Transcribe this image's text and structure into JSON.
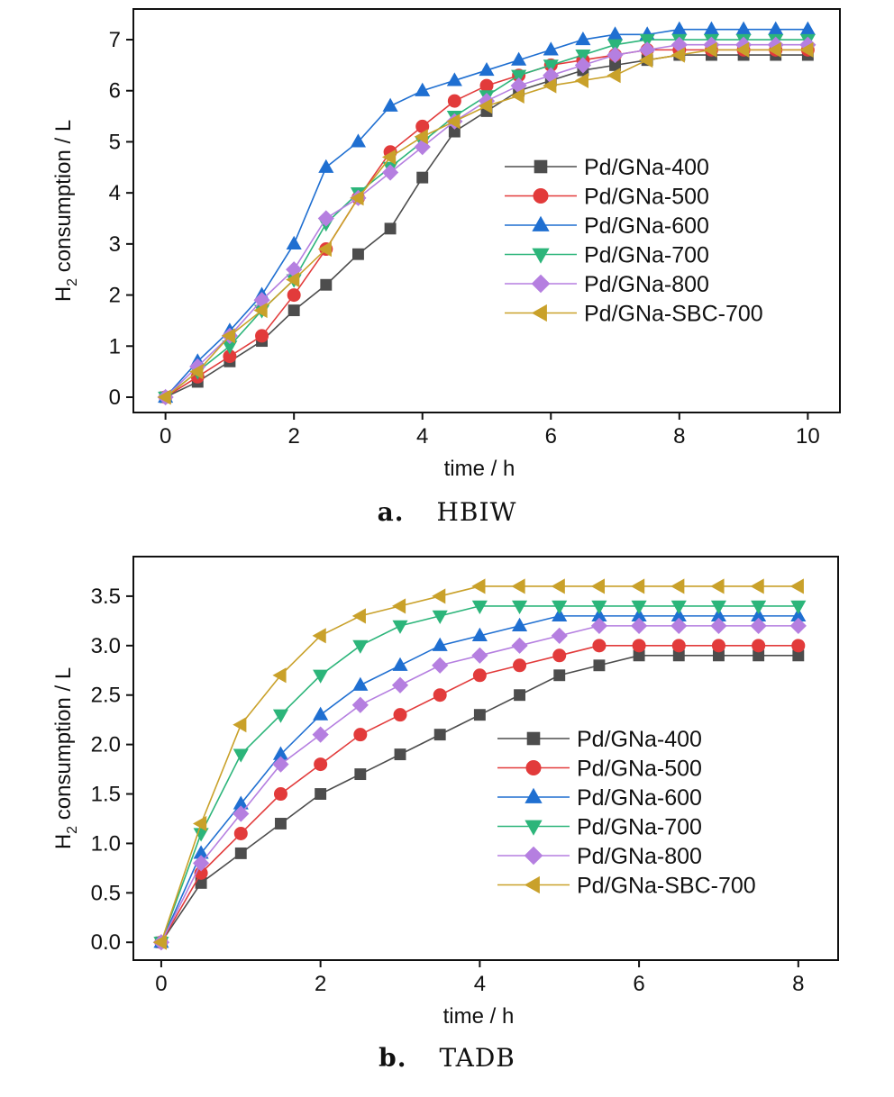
{
  "figures": [
    {
      "caption_letter": "a.",
      "caption_text": "HBIW",
      "chart_data": {
        "type": "line",
        "xlabel": "time / h",
        "ylabel_main": "H",
        "ylabel_sub": "2",
        "ylabel_rest": " consumption / L",
        "xlim": [
          -0.5,
          10.5
        ],
        "ylim": [
          -0.3,
          7.6
        ],
        "xticks": [
          0,
          2,
          4,
          6,
          8,
          10
        ],
        "yticks": [
          0,
          1,
          2,
          3,
          4,
          5,
          6,
          7
        ],
        "ytick_decimals": 0,
        "grid": false,
        "legend_position": "center-right",
        "x": [
          0,
          0.5,
          1,
          1.5,
          2,
          2.5,
          3,
          3.5,
          4,
          4.5,
          5,
          5.5,
          6,
          6.5,
          7,
          7.5,
          8,
          8.5,
          9,
          9.5,
          10
        ],
        "series": [
          {
            "name": "Pd/GNa-400",
            "marker": "square",
            "color": "#4d4d4d",
            "values": [
              0,
              0.3,
              0.7,
              1.1,
              1.7,
              2.2,
              2.8,
              3.3,
              4.3,
              5.2,
              5.6,
              6.0,
              6.2,
              6.4,
              6.5,
              6.6,
              6.7,
              6.7,
              6.7,
              6.7,
              6.7
            ]
          },
          {
            "name": "Pd/GNa-500",
            "marker": "circle",
            "color": "#e23b3b",
            "values": [
              0,
              0.4,
              0.8,
              1.2,
              2.0,
              2.9,
              3.9,
              4.8,
              5.3,
              5.8,
              6.1,
              6.3,
              6.5,
              6.6,
              6.7,
              6.8,
              6.8,
              6.8,
              6.8,
              6.8,
              6.8
            ]
          },
          {
            "name": "Pd/GNa-600",
            "marker": "triangle-up",
            "color": "#1f6fd1",
            "values": [
              0,
              0.7,
              1.3,
              2.0,
              3.0,
              4.5,
              5.0,
              5.7,
              6.0,
              6.2,
              6.4,
              6.6,
              6.8,
              7.0,
              7.1,
              7.1,
              7.2,
              7.2,
              7.2,
              7.2,
              7.2
            ]
          },
          {
            "name": "Pd/GNa-700",
            "marker": "triangle-down",
            "color": "#2cb57a",
            "values": [
              0,
              0.5,
              1.0,
              1.7,
              2.3,
              3.4,
              4.0,
              4.5,
              5.0,
              5.5,
              5.9,
              6.3,
              6.5,
              6.7,
              6.9,
              7.0,
              7.0,
              7.0,
              7.0,
              7.0,
              7.0
            ]
          },
          {
            "name": "Pd/GNa-800",
            "marker": "diamond",
            "color": "#b57fe0",
            "values": [
              0,
              0.6,
              1.2,
              1.9,
              2.5,
              3.5,
              3.9,
              4.4,
              4.9,
              5.4,
              5.8,
              6.1,
              6.3,
              6.5,
              6.7,
              6.8,
              6.9,
              6.9,
              6.9,
              6.9,
              6.9
            ]
          },
          {
            "name": "Pd/GNa-SBC-700",
            "marker": "triangle-left",
            "color": "#c9a12a",
            "values": [
              0,
              0.5,
              1.2,
              1.7,
              2.3,
              2.9,
              3.9,
              4.7,
              5.1,
              5.4,
              5.7,
              5.9,
              6.1,
              6.2,
              6.3,
              6.6,
              6.7,
              6.8,
              6.8,
              6.8,
              6.8
            ]
          }
        ]
      }
    },
    {
      "caption_letter": "b.",
      "caption_text": "TADB",
      "chart_data": {
        "type": "line",
        "xlabel": "time / h",
        "ylabel_main": "H",
        "ylabel_sub": "2",
        "ylabel_rest": " consumption / L",
        "xlim": [
          -0.35,
          8.5
        ],
        "ylim": [
          -0.18,
          3.9
        ],
        "xticks": [
          0,
          2,
          4,
          6,
          8
        ],
        "yticks": [
          0.0,
          0.5,
          1.0,
          1.5,
          2.0,
          2.5,
          3.0,
          3.5
        ],
        "ytick_decimals": 1,
        "grid": false,
        "legend_position": "center-right",
        "x": [
          0,
          0.5,
          1,
          1.5,
          2,
          2.5,
          3,
          3.5,
          4,
          4.5,
          5,
          5.5,
          6,
          6.5,
          7,
          7.5,
          8
        ],
        "series": [
          {
            "name": "Pd/GNa-400",
            "marker": "square",
            "color": "#4d4d4d",
            "values": [
              0,
              0.6,
              0.9,
              1.2,
              1.5,
              1.7,
              1.9,
              2.1,
              2.3,
              2.5,
              2.7,
              2.8,
              2.9,
              2.9,
              2.9,
              2.9,
              2.9
            ]
          },
          {
            "name": "Pd/GNa-500",
            "marker": "circle",
            "color": "#e23b3b",
            "values": [
              0,
              0.7,
              1.1,
              1.5,
              1.8,
              2.1,
              2.3,
              2.5,
              2.7,
              2.8,
              2.9,
              3.0,
              3.0,
              3.0,
              3.0,
              3.0,
              3.0
            ]
          },
          {
            "name": "Pd/GNa-600",
            "marker": "triangle-up",
            "color": "#1f6fd1",
            "values": [
              0,
              0.9,
              1.4,
              1.9,
              2.3,
              2.6,
              2.8,
              3.0,
              3.1,
              3.2,
              3.3,
              3.3,
              3.3,
              3.3,
              3.3,
              3.3,
              3.3
            ]
          },
          {
            "name": "Pd/GNa-700",
            "marker": "triangle-down",
            "color": "#2cb57a",
            "values": [
              0,
              1.1,
              1.9,
              2.3,
              2.7,
              3.0,
              3.2,
              3.3,
              3.4,
              3.4,
              3.4,
              3.4,
              3.4,
              3.4,
              3.4,
              3.4,
              3.4
            ]
          },
          {
            "name": "Pd/GNa-800",
            "marker": "diamond",
            "color": "#b57fe0",
            "values": [
              0,
              0.8,
              1.3,
              1.8,
              2.1,
              2.4,
              2.6,
              2.8,
              2.9,
              3.0,
              3.1,
              3.2,
              3.2,
              3.2,
              3.2,
              3.2,
              3.2
            ]
          },
          {
            "name": "Pd/GNa-SBC-700",
            "marker": "triangle-left",
            "color": "#c9a12a",
            "values": [
              0,
              1.2,
              2.2,
              2.7,
              3.1,
              3.3,
              3.4,
              3.5,
              3.6,
              3.6,
              3.6,
              3.6,
              3.6,
              3.6,
              3.6,
              3.6,
              3.6
            ]
          }
        ]
      }
    }
  ]
}
